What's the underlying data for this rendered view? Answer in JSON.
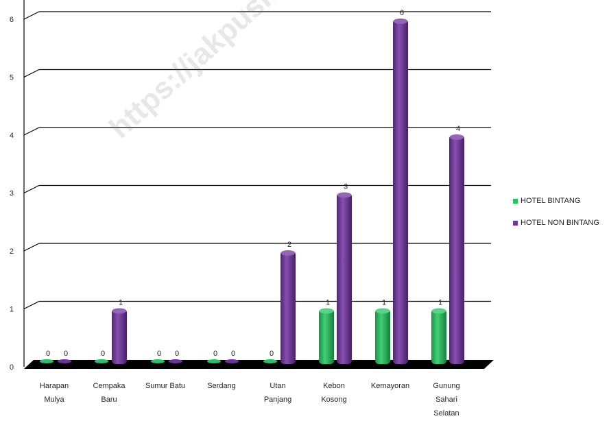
{
  "chart_data": {
    "type": "bar",
    "categories": [
      [
        "Harapan",
        "Mulya"
      ],
      [
        "Cempaka",
        "Baru"
      ],
      [
        "Sumur Batu"
      ],
      [
        "Serdang"
      ],
      [
        "Utan",
        "Panjang"
      ],
      [
        "Kebon",
        "Kosong"
      ],
      [
        "Kemayoran"
      ],
      [
        "Gunung",
        "Sahari",
        "Selatan"
      ]
    ],
    "series": [
      {
        "name": "HOTEL BINTANG",
        "color": "#22c55e",
        "values": [
          0,
          0,
          0,
          0,
          0,
          1,
          1,
          1
        ]
      },
      {
        "name": "HOTEL NON BINTANG",
        "color": "#7030a0",
        "values": [
          0,
          1,
          0,
          0,
          2,
          3,
          6,
          4
        ]
      }
    ],
    "ylim": [
      0,
      6
    ],
    "yticks": [
      "0",
      "1",
      "2",
      "3",
      "4",
      "5",
      "6"
    ],
    "grid": true,
    "legend_position": "right",
    "floor_color": "#000000"
  },
  "watermark": "https://jakpuskota.bps.go.id"
}
